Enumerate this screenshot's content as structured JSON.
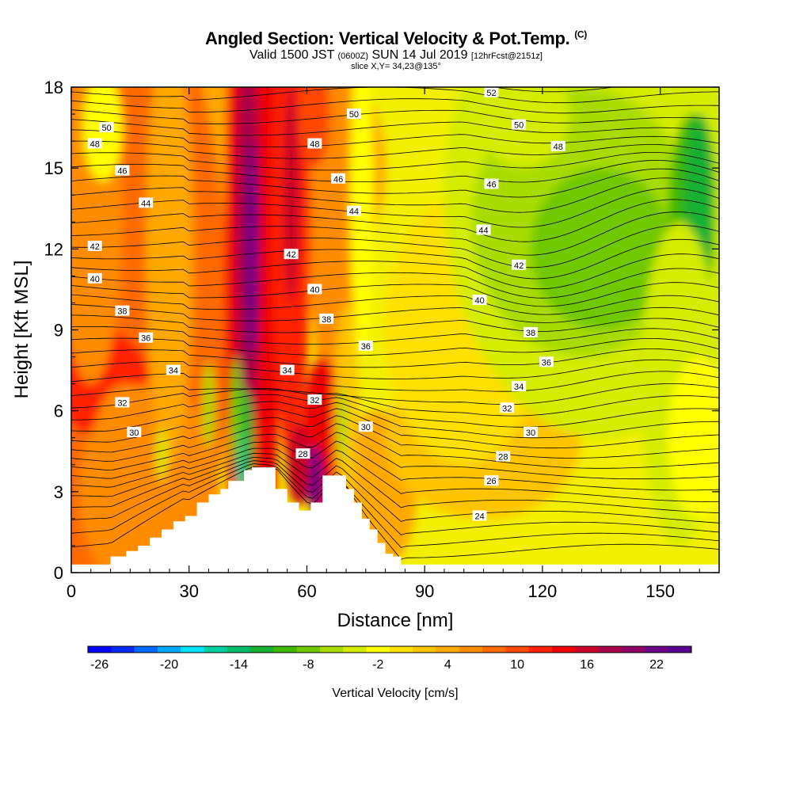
{
  "header": {
    "title_main": "Angled Section: Vertical Velocity & Pot.Temp.",
    "title_unit": "(C)",
    "valid_a": "Valid 1500 JST",
    "valid_b": "(0600Z)",
    "valid_c": "SUN 14 Jul 2019",
    "valid_d": "[12hrFcst@2151z]",
    "slice": "slice X,Y= 34,23@135°"
  },
  "chart_data": {
    "type": "heatmap",
    "title": "Angled Section: Vertical Velocity & Pot.Temp.",
    "xlabel": "Distance [nm]",
    "ylabel": "Height [Kft MSL]",
    "xlim": [
      0,
      165
    ],
    "ylim": [
      0,
      18
    ],
    "x_ticks": [
      "0",
      "30",
      "60",
      "90",
      "120",
      "150"
    ],
    "y_ticks": [
      "0",
      "3",
      "6",
      "9",
      "12",
      "15",
      "18"
    ],
    "colorbar": {
      "label": "Vertical Velocity [cm/s]",
      "tick_labels": [
        "-26",
        "-20",
        "-14",
        "-8",
        "-2",
        "4",
        "10",
        "16",
        "22"
      ],
      "levels_min": -26,
      "levels_step": 2,
      "colors": [
        "#0000ff",
        "#0028f0",
        "#0068ff",
        "#00a8ff",
        "#00e4ff",
        "#00d0a0",
        "#00bc6a",
        "#18b030",
        "#40b800",
        "#70c800",
        "#a8dc00",
        "#d4ec00",
        "#ffff00",
        "#ffe000",
        "#ffc400",
        "#ffa800",
        "#ff8c00",
        "#ff6a00",
        "#ff4800",
        "#ff2000",
        "#ee0000",
        "#c80028",
        "#a8004a",
        "#8c0068",
        "#6c0088",
        "#5a0090"
      ]
    },
    "isentropes_labels": [
      "24",
      "26",
      "28",
      "30",
      "32",
      "34",
      "36",
      "38",
      "40",
      "42",
      "44",
      "46",
      "48",
      "50",
      "52"
    ],
    "terrain_peaks_nm": [
      46,
      68
    ],
    "updraft_max_nm": 46,
    "downdraft_min_nm": 44,
    "grid": false
  }
}
